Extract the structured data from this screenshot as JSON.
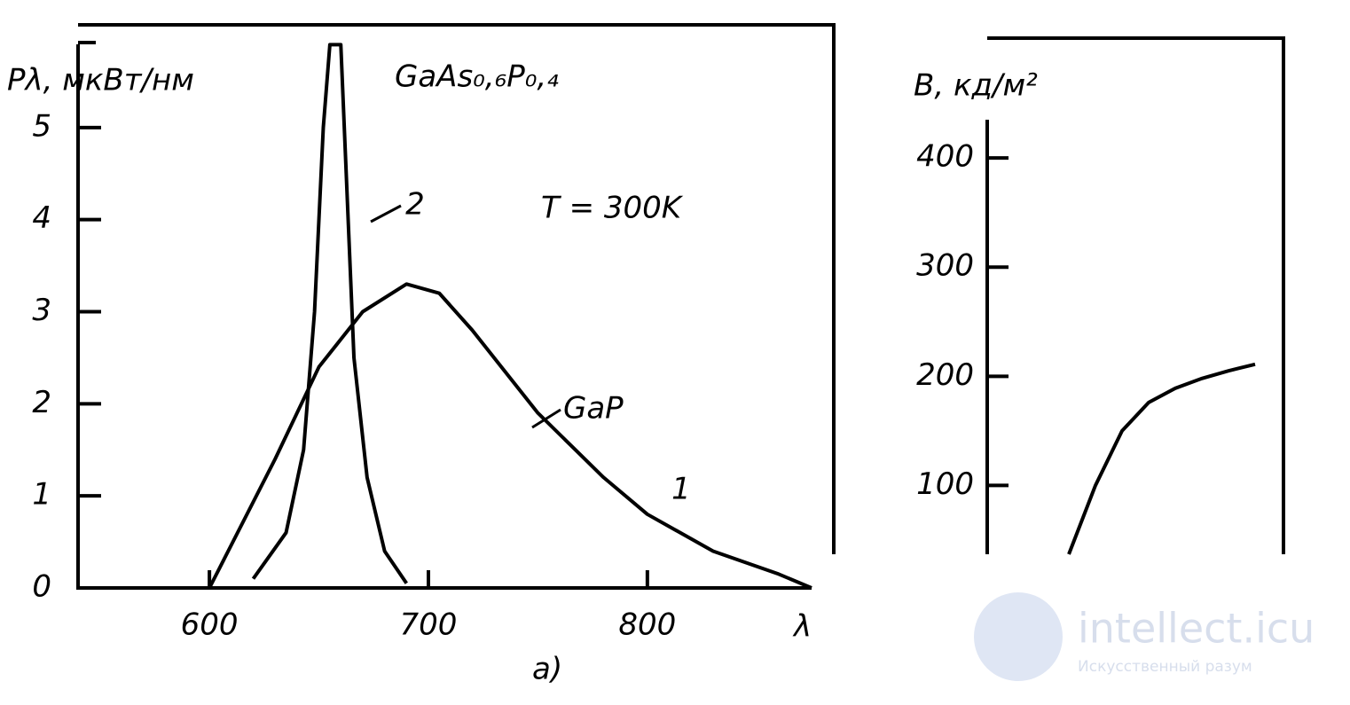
{
  "chart_data": [
    {
      "type": "line",
      "title": "GaAs₀,₆P₀,₄",
      "y_label": "Pλ, мкВт/нм",
      "x_label": "λ",
      "caption": "a)",
      "annotations": [
        "T = 300K",
        "GaP"
      ],
      "xlim": [
        540,
        875
      ],
      "xticks": [
        600,
        700,
        800
      ],
      "ylim": [
        0,
        6
      ],
      "yticks": [
        0,
        1,
        2,
        3,
        4,
        5
      ],
      "series": [
        {
          "name": "1",
          "color": "#000000",
          "x": [
            600,
            630,
            650,
            670,
            690,
            705,
            720,
            750,
            780,
            800,
            830,
            860,
            875
          ],
          "values": [
            0,
            1.4,
            2.4,
            3.0,
            3.3,
            3.2,
            2.8,
            1.9,
            1.2,
            0.8,
            0.4,
            0.15,
            0
          ]
        },
        {
          "name": "2",
          "color": "#000000",
          "x": [
            620,
            635,
            643,
            648,
            652,
            655,
            660,
            663,
            666,
            672,
            680,
            690
          ],
          "values": [
            0.1,
            0.6,
            1.5,
            3.0,
            5.0,
            5.9,
            5.9,
            4.2,
            2.5,
            1.2,
            0.4,
            0.05
          ]
        }
      ]
    },
    {
      "type": "line",
      "y_label": "B, кд/м²",
      "ylim": [
        37,
        435
      ],
      "yticks": [
        100,
        200,
        300,
        400
      ],
      "values": [
        37,
        100,
        150,
        176,
        189,
        198,
        205,
        211
      ],
      "color": "#000000"
    }
  ],
  "watermark": {
    "brand": "intellect.icu",
    "tagline": "Искусственный разум"
  }
}
